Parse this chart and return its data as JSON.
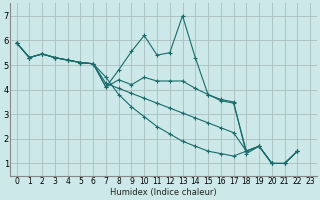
{
  "title": "",
  "xlabel": "Humidex (Indice chaleur)",
  "ylabel": "",
  "bg_color": "#cce8e8",
  "grid_color": "#aabfbf",
  "line_color": "#1a6b6b",
  "marker_color": "#1a6b6b",
  "xlim": [
    -0.5,
    23.5
  ],
  "ylim": [
    0.5,
    7.5
  ],
  "xticks": [
    0,
    1,
    2,
    3,
    4,
    5,
    6,
    7,
    8,
    9,
    10,
    11,
    12,
    13,
    14,
    15,
    16,
    17,
    18,
    19,
    20,
    21,
    22,
    23
  ],
  "yticks": [
    1,
    2,
    3,
    4,
    5,
    6,
    7
  ],
  "series": [
    [
      5.9,
      5.3,
      5.45,
      5.3,
      5.2,
      5.1,
      5.05,
      4.1,
      4.8,
      5.55,
      6.2,
      5.4,
      5.5,
      7.0,
      5.3,
      3.8,
      3.6,
      3.5,
      1.4,
      1.7,
      1.0,
      1.0,
      1.5
    ],
    [
      5.9,
      5.3,
      5.45,
      5.3,
      5.2,
      5.1,
      5.05,
      4.1,
      4.4,
      4.2,
      4.5,
      4.35,
      4.35,
      4.35,
      4.05,
      3.8,
      3.55,
      3.45,
      1.5,
      1.7,
      1.0,
      1.0,
      1.5
    ],
    [
      5.9,
      5.3,
      5.45,
      5.3,
      5.2,
      5.1,
      5.05,
      4.25,
      4.05,
      3.85,
      3.65,
      3.45,
      3.25,
      3.05,
      2.85,
      2.65,
      2.45,
      2.25,
      1.5,
      1.7,
      1.0,
      1.0,
      1.5
    ],
    [
      5.9,
      5.3,
      5.45,
      5.3,
      5.2,
      5.1,
      5.05,
      4.5,
      3.8,
      3.3,
      2.9,
      2.5,
      2.2,
      1.9,
      1.7,
      1.5,
      1.4,
      1.3,
      1.5,
      1.7,
      1.0,
      1.0,
      1.5
    ]
  ],
  "x_values": [
    0,
    1,
    2,
    3,
    4,
    5,
    6,
    7,
    8,
    9,
    10,
    11,
    12,
    13,
    14,
    15,
    16,
    17,
    18,
    19,
    20,
    21,
    22
  ]
}
